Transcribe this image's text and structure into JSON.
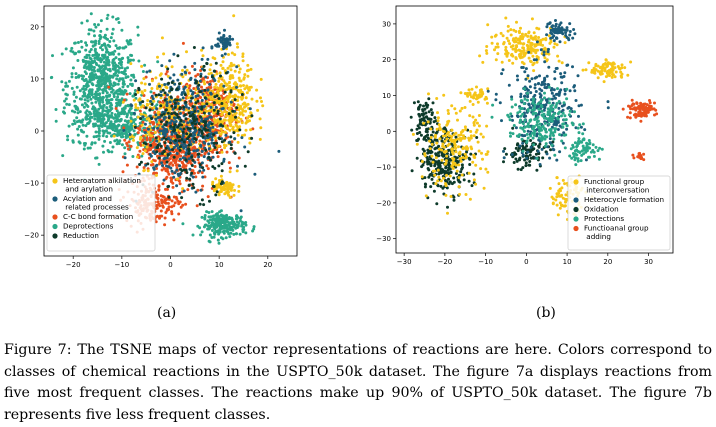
{
  "figure": {
    "label_a": "(a)",
    "label_b": "(b)",
    "caption": "Figure 7: The TSNE maps of vector representations of reactions are here. Colors correspond to classes of chemical reactions in the USPTO_50k dataset. The figure 7a displays reactions from five most frequent classes. The reactions make up 90% of USPTO_50k dataset. The figure 7b represents five less frequent classes."
  },
  "chart_data": [
    {
      "type": "scatter",
      "title": "",
      "xlabel": "",
      "ylabel": "",
      "xlim": [
        -26,
        26
      ],
      "ylim": [
        -24,
        24
      ],
      "xticks": [
        -20,
        -10,
        0,
        10,
        20
      ],
      "yticks": [
        -20,
        -10,
        0,
        10,
        20
      ],
      "xtick_labels": [
        "−20",
        "−10",
        "0",
        "10",
        "20"
      ],
      "ytick_labels": [
        "−20",
        "−10",
        "0",
        "10",
        "20"
      ],
      "grid": false,
      "legend_position": "lower-left",
      "series": [
        {
          "name": "Heteroatom alkilation\n and arylation",
          "color": "#f5c518"
        },
        {
          "name": "Acylation and\n related processes",
          "color": "#1b5c7a"
        },
        {
          "name": "C-C bond formation",
          "color": "#e8501e"
        },
        {
          "name": "Deprotections",
          "color": "#2aa889"
        },
        {
          "name": "Reduction",
          "color": "#0d3a2a"
        }
      ],
      "clusters": [
        {
          "series": 3,
          "cx": -14,
          "cy": 9,
          "rx": 8,
          "ry": 12,
          "n": 700
        },
        {
          "series": 3,
          "cx": -10,
          "cy": 1,
          "rx": 10,
          "ry": 5,
          "n": 300
        },
        {
          "series": 3,
          "cx": 11,
          "cy": -18,
          "rx": 5,
          "ry": 2.5,
          "n": 220
        },
        {
          "series": 2,
          "cx": 1,
          "cy": -2,
          "rx": 9,
          "ry": 11,
          "n": 650
        },
        {
          "series": 2,
          "cx": -4,
          "cy": -14,
          "rx": 6,
          "ry": 4,
          "n": 150
        },
        {
          "series": 2,
          "cx": 8,
          "cy": 4,
          "rx": 6,
          "ry": 8,
          "n": 250
        },
        {
          "series": 0,
          "cx": 12,
          "cy": 6,
          "rx": 6,
          "ry": 10,
          "n": 350
        },
        {
          "series": 0,
          "cx": 0,
          "cy": 3,
          "rx": 9,
          "ry": 10,
          "n": 250
        },
        {
          "series": 0,
          "cx": 11,
          "cy": -11,
          "rx": 3,
          "ry": 2,
          "n": 70
        },
        {
          "series": 1,
          "cx": 3,
          "cy": 1,
          "rx": 10,
          "ry": 12,
          "n": 400
        },
        {
          "series": 1,
          "cx": 11,
          "cy": 17,
          "rx": 2,
          "ry": 2,
          "n": 60
        },
        {
          "series": 4,
          "cx": 4,
          "cy": 0,
          "rx": 11,
          "ry": 13,
          "n": 250
        }
      ]
    },
    {
      "type": "scatter",
      "title": "",
      "xlabel": "",
      "ylabel": "",
      "xlim": [
        -32,
        36
      ],
      "ylim": [
        -34,
        35
      ],
      "xticks": [
        -30,
        -20,
        -10,
        0,
        10,
        20,
        30
      ],
      "yticks": [
        -30,
        -20,
        -10,
        0,
        10,
        20,
        30
      ],
      "xtick_labels": [
        "−30",
        "−20",
        "−10",
        "0",
        "10",
        "20",
        "30"
      ],
      "ytick_labels": [
        "−30",
        "−20",
        "−10",
        "0",
        "10",
        "20",
        "30"
      ],
      "grid": false,
      "legend_position": "lower-right",
      "series": [
        {
          "name": "Functional group\n interconversation",
          "color": "#f5c518"
        },
        {
          "name": "Heterocycle formation",
          "color": "#1b5c7a"
        },
        {
          "name": "Oxidation",
          "color": "#0d3a2a"
        },
        {
          "name": "Protections",
          "color": "#2aa889"
        },
        {
          "name": "Functioanal group\n adding",
          "color": "#e8501e"
        }
      ],
      "clusters": [
        {
          "series": 2,
          "cx": -20,
          "cy": -8,
          "rx": 7,
          "ry": 10,
          "n": 260
        },
        {
          "series": 2,
          "cx": -25,
          "cy": 3,
          "rx": 3,
          "ry": 7,
          "n": 80
        },
        {
          "series": 2,
          "cx": 0,
          "cy": -6,
          "rx": 6,
          "ry": 5,
          "n": 90
        },
        {
          "series": 0,
          "cx": -18,
          "cy": -5,
          "rx": 9,
          "ry": 12,
          "n": 200
        },
        {
          "series": 0,
          "cx": 0,
          "cy": 24,
          "rx": 10,
          "ry": 6,
          "n": 200
        },
        {
          "series": 0,
          "cx": 20,
          "cy": 17,
          "rx": 5,
          "ry": 3,
          "n": 90
        },
        {
          "series": 0,
          "cx": -12,
          "cy": 10,
          "rx": 3,
          "ry": 2,
          "n": 40
        },
        {
          "series": 0,
          "cx": 10,
          "cy": -18,
          "rx": 5,
          "ry": 6,
          "n": 80
        },
        {
          "series": 1,
          "cx": 4,
          "cy": 6,
          "rx": 10,
          "ry": 15,
          "n": 280
        },
        {
          "series": 1,
          "cx": 8,
          "cy": 28,
          "rx": 4,
          "ry": 3,
          "n": 60
        },
        {
          "series": 3,
          "cx": 4,
          "cy": 3,
          "rx": 9,
          "ry": 8,
          "n": 200
        },
        {
          "series": 3,
          "cx": 14,
          "cy": -5,
          "rx": 5,
          "ry": 4,
          "n": 70
        },
        {
          "series": 4,
          "cx": 28,
          "cy": 6,
          "rx": 4,
          "ry": 2.5,
          "n": 90
        },
        {
          "series": 4,
          "cx": 28,
          "cy": -7,
          "rx": 1.5,
          "ry": 1.5,
          "n": 15
        }
      ]
    }
  ]
}
